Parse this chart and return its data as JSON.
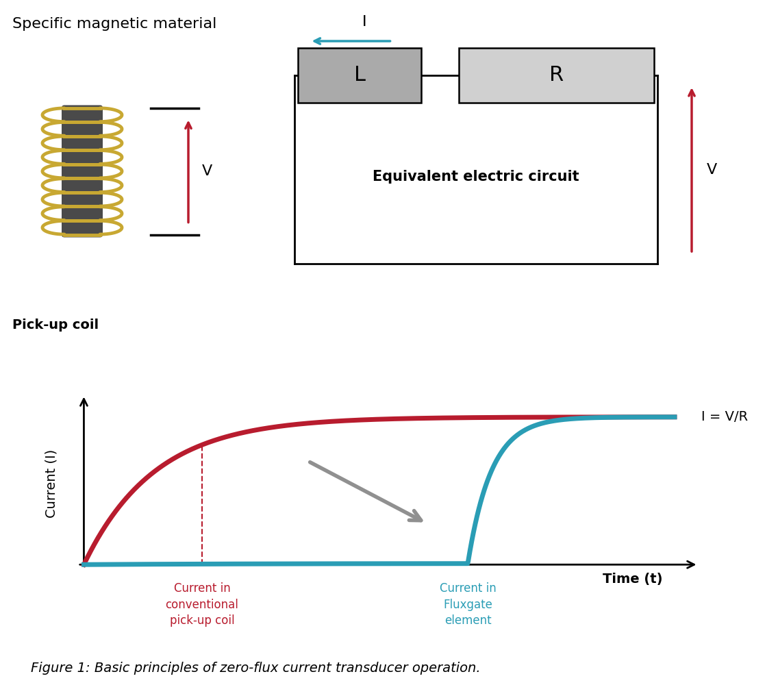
{
  "title_top": "Specific magnetic material",
  "pickup_label": "Pick-up coil",
  "circuit_label": "Equivalent electric circuit",
  "L_label": "L",
  "R_label": "R",
  "I_label": "I",
  "V_label": "V",
  "IVR_label": "I = V/R",
  "xlabel": "Time (t)",
  "ylabel": "Current (I)",
  "red_curve_label": "Current in\nconventional\npick-up coil",
  "cyan_curve_label": "Current in\nFluxgate\nelement",
  "figure_caption": "Figure 1: Basic principles of zero-flux current transducer operation.",
  "red_color": "#b81c2e",
  "cyan_color": "#2a9db5",
  "coil_wire_color": "#c8a832",
  "coil_core_color": "#4a4a4a",
  "arrow_gray": "#909090",
  "box_color_L": "#aaaaaa",
  "box_color_R": "#d0d0d0",
  "background": "#ffffff"
}
